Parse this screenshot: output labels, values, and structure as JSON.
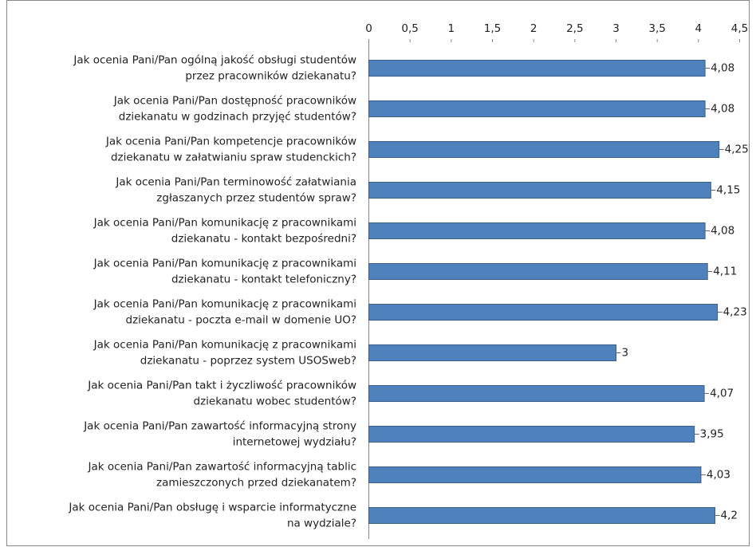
{
  "chart_data": {
    "type": "hbar",
    "categories": [
      [
        "Jak ocenia Pani/Pan ogólną jakość obsługi studentów",
        "przez pracowników dziekanatu?"
      ],
      [
        "Jak ocenia Pani/Pan dostępność pracowników",
        "dziekanatu w godzinach przyjęć studentów?"
      ],
      [
        "Jak ocenia Pani/Pan kompetencje pracowników",
        "dziekanatu w załatwianiu spraw studenckich?"
      ],
      [
        "Jak ocenia Pani/Pan terminowość załatwiania",
        "zgłaszanych przez studentów spraw?"
      ],
      [
        "Jak ocenia Pani/Pan komunikację z pracownikami",
        "dziekanatu - kontakt bezpośredni?"
      ],
      [
        "Jak ocenia Pani/Pan komunikację z pracownikami",
        "dziekanatu - kontakt telefoniczny?"
      ],
      [
        "Jak ocenia Pani/Pan komunikację z pracownikami",
        "dziekanatu - poczta e-mail w domenie UO?"
      ],
      [
        "Jak ocenia Pani/Pan komunikację z pracownikami",
        "dziekanatu - poprzez system USOSweb?"
      ],
      [
        "Jak ocenia Pani/Pan takt i życzliwość pracowników",
        "dziekanatu wobec studentów?"
      ],
      [
        "Jak ocenia Pani/Pan zawartość informacyjną strony",
        "internetowej wydziału?"
      ],
      [
        "Jak ocenia Pani/Pan zawartość informacyjną tablic",
        "zamieszczonych przed dziekanatem?"
      ],
      [
        "Jak ocenia Pani/Pan obsługę i wsparcie informatyczne",
        "na wydziale?"
      ]
    ],
    "values": [
      4.08,
      4.08,
      4.25,
      4.15,
      4.08,
      4.11,
      4.23,
      3,
      4.07,
      3.95,
      4.03,
      4.2
    ],
    "value_labels": [
      "4,08",
      "4,08",
      "4,25",
      "4,15",
      "4,08",
      "4,11",
      "4,23",
      "3",
      "4,07",
      "3,95",
      "4,03",
      "4,2"
    ],
    "color": "#4f81bd",
    "xlim": [
      0,
      4.5
    ],
    "xticks": [
      0,
      {
        "value": 0.5,
        "label": "0,5"
      },
      1,
      {
        "value": 1.5,
        "label": "1,5"
      },
      2,
      {
        "value": 2.5,
        "label": "2,5"
      },
      3,
      {
        "value": 3.5,
        "label": "3,5"
      },
      4,
      {
        "value": 4.5,
        "label": "4,5"
      }
    ]
  }
}
